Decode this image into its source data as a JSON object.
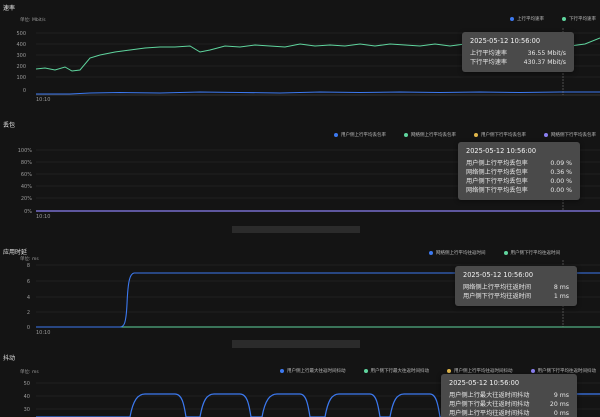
{
  "colors": {
    "blue": "#3c79f0",
    "green": "#5fd59e",
    "yellow": "#e0b64a",
    "purple": "#8a7ff0",
    "bg": "#141414"
  },
  "panel1": {
    "title": "速率",
    "unit": "单位: Mbit/s",
    "legend": [
      {
        "label": "上行平均速率",
        "color": "#3c79f0"
      },
      {
        "label": "下行平均速率",
        "color": "#5fd59e"
      }
    ],
    "yticks": [
      "500",
      "400",
      "300",
      "200",
      "100",
      "0"
    ],
    "xlabel": "10:10",
    "tooltip": {
      "time": "2025-05-12 10:56:00",
      "rows": [
        {
          "label": "上行平均速率",
          "value": "36.55 Mbit/s"
        },
        {
          "label": "下行平均速率",
          "value": "430.37 Mbit/s"
        }
      ]
    }
  },
  "panel2": {
    "title": "丢包",
    "legend": [
      {
        "label": "用户侧上行平均丢包率",
        "color": "#3c79f0"
      },
      {
        "label": "网络侧上行平均丢包率",
        "color": "#5fd59e"
      },
      {
        "label": "用户侧下行平均丢包率",
        "color": "#e0b64a"
      },
      {
        "label": "网络侧下行平均丢包率",
        "color": "#8a7ff0"
      }
    ],
    "yticks": [
      "100%",
      "80%",
      "60%",
      "40%",
      "20%",
      "0%"
    ],
    "xlabel": "10:10",
    "tooltip": {
      "time": "2025-05-12 10:56:00",
      "rows": [
        {
          "label": "用户侧上行平均丢包率",
          "value": "0.09 %"
        },
        {
          "label": "网络侧上行平均丢包率",
          "value": "0.36 %"
        },
        {
          "label": "用户侧下行平均丢包率",
          "value": "0.00 %"
        },
        {
          "label": "网络侧下行平均丢包率",
          "value": "0.00 %"
        }
      ]
    }
  },
  "panel3": {
    "title": "应用时延",
    "unit": "单位: ms",
    "legend": [
      {
        "label": "网络侧上行平均往返时间",
        "color": "#3c79f0"
      },
      {
        "label": "用户侧下行平均往返时间",
        "color": "#5fd59e"
      }
    ],
    "yticks": [
      "8",
      "6",
      "4",
      "2",
      "0"
    ],
    "xlabel": "10:10",
    "tooltip": {
      "time": "2025-05-12 10:56:00",
      "rows": [
        {
          "label": "网络侧上行平均往返时间",
          "value": "8 ms"
        },
        {
          "label": "用户侧下行平均往返时间",
          "value": "1 ms"
        }
      ]
    }
  },
  "panel4": {
    "title": "抖动",
    "unit": "单位: ms",
    "legend": [
      {
        "label": "用户侧上行最大往返时间抖动",
        "color": "#3c79f0"
      },
      {
        "label": "用户侧下行最大往返时间抖动",
        "color": "#5fd59e"
      },
      {
        "label": "用户侧上行平均往返时间抖动",
        "color": "#e0b64a"
      },
      {
        "label": "用户侧下行平均往返时间抖动",
        "color": "#8a7ff0"
      }
    ],
    "yticks": [
      "50",
      "40",
      "30"
    ],
    "tooltip": {
      "time": "2025-05-12 10:56:00",
      "rows": [
        {
          "label": "用户侧上行最大往返时间抖动",
          "value": "9 ms"
        },
        {
          "label": "用户侧下行最大往返时间抖动",
          "value": "20 ms"
        },
        {
          "label": "用户侧上行平均往返时间抖动",
          "value": "0 ms"
        }
      ]
    }
  }
}
